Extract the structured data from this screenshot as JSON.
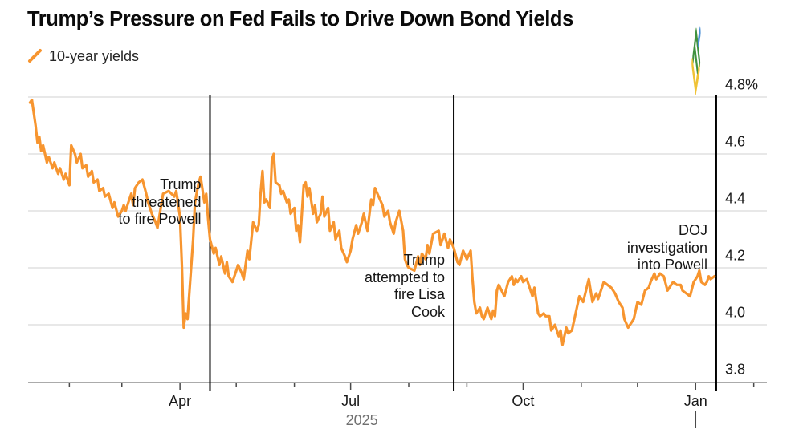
{
  "header": {
    "title": "Trump’s Pressure on Fed Fails to Drive Down Bond Yields",
    "legend": {
      "label": "10-year yields"
    }
  },
  "colors": {
    "line": "#F7952F",
    "grid": "#DADADA",
    "axis": "#ABABAB",
    "tick": "#4A4A4A",
    "event_line": "#000000",
    "text": "#1A1A1A",
    "year_text": "#707070"
  },
  "logo": {
    "green": "#41923F",
    "yellow": "#EFC235",
    "blue": "#4A8FD5"
  },
  "chart_data": {
    "type": "line",
    "title": "Trump’s Pressure on Fed Fails to Drive Down Bond Yields",
    "legend_position": "top-left",
    "grid": true,
    "ylim": [
      3.8,
      4.8
    ],
    "x_domain": [
      "2025-01-10",
      "2026-02-08"
    ],
    "y_axis": {
      "side": "right",
      "ticks": [
        {
          "value": 4.8,
          "label": "4.8%"
        },
        {
          "value": 4.6,
          "label": "4.6"
        },
        {
          "value": 4.4,
          "label": "4.4"
        },
        {
          "value": 4.2,
          "label": "4.2"
        },
        {
          "value": 4.0,
          "label": "4.0"
        },
        {
          "value": 3.8,
          "label": "3.8"
        }
      ]
    },
    "x_axis": {
      "ticks": [
        {
          "date": "2025-04-01",
          "label": "Apr"
        },
        {
          "date": "2025-07-01",
          "label": "Jul"
        },
        {
          "date": "2025-10-01",
          "label": "Oct"
        },
        {
          "date": "2026-01-01",
          "label": "Jan"
        }
      ],
      "minor_ticks": [
        "2025-02-01",
        "2025-03-01",
        "2025-05-01",
        "2025-06-01",
        "2025-08-01",
        "2025-09-01",
        "2025-11-01",
        "2025-12-01",
        "2026-02-01"
      ],
      "year_label": "2025",
      "year_divider_date": "2026-01-01"
    },
    "events": [
      {
        "date": "2025-04-17",
        "label_lines": [
          "Trump",
          "threatened",
          "to fire Powell"
        ]
      },
      {
        "date": "2025-08-25",
        "label_lines": [
          "Trump",
          "attempted to",
          "fire Lisa",
          "Cook"
        ]
      },
      {
        "date": "2026-01-12",
        "label_lines": [
          "DOJ",
          "investigation",
          "into Powell"
        ]
      }
    ],
    "series": [
      {
        "name": "10-year yields",
        "color": "#F7952F",
        "points": [
          [
            "2025-01-11",
            4.78
          ],
          [
            "2025-01-12",
            4.79
          ],
          [
            "2025-01-14",
            4.7
          ],
          [
            "2025-01-15",
            4.64
          ],
          [
            "2025-01-16",
            4.66
          ],
          [
            "2025-01-17",
            4.61
          ],
          [
            "2025-01-18",
            4.63
          ],
          [
            "2025-01-20",
            4.57
          ],
          [
            "2025-01-21",
            4.59
          ],
          [
            "2025-01-23",
            4.55
          ],
          [
            "2025-01-24",
            4.57
          ],
          [
            "2025-01-26",
            4.53
          ],
          [
            "2025-01-27",
            4.55
          ],
          [
            "2025-01-29",
            4.51
          ],
          [
            "2025-01-30",
            4.53
          ],
          [
            "2025-02-01",
            4.49
          ],
          [
            "2025-02-02",
            4.63
          ],
          [
            "2025-02-04",
            4.6
          ],
          [
            "2025-02-05",
            4.57
          ],
          [
            "2025-02-07",
            4.6
          ],
          [
            "2025-02-08",
            4.55
          ],
          [
            "2025-02-10",
            4.56
          ],
          [
            "2025-02-11",
            4.52
          ],
          [
            "2025-02-12",
            4.53
          ],
          [
            "2025-02-13",
            4.54
          ],
          [
            "2025-02-14",
            4.5
          ],
          [
            "2025-02-16",
            4.51
          ],
          [
            "2025-02-17",
            4.47
          ],
          [
            "2025-02-19",
            4.48
          ],
          [
            "2025-02-20",
            4.45
          ],
          [
            "2025-02-22",
            4.46
          ],
          [
            "2025-02-24",
            4.41
          ],
          [
            "2025-02-25",
            4.43
          ],
          [
            "2025-02-27",
            4.38
          ],
          [
            "2025-03-01",
            4.4
          ],
          [
            "2025-03-02",
            4.42
          ],
          [
            "2025-03-03",
            4.4
          ],
          [
            "2025-03-06",
            4.46
          ],
          [
            "2025-03-07",
            4.42
          ],
          [
            "2025-03-08",
            4.48
          ],
          [
            "2025-03-10",
            4.5
          ],
          [
            "2025-03-12",
            4.51
          ],
          [
            "2025-03-14",
            4.46
          ],
          [
            "2025-03-15",
            4.43
          ],
          [
            "2025-03-17",
            4.39
          ],
          [
            "2025-03-19",
            4.36
          ],
          [
            "2025-03-20",
            4.34
          ],
          [
            "2025-03-23",
            4.46
          ],
          [
            "2025-03-26",
            4.47
          ],
          [
            "2025-03-29",
            4.45
          ],
          [
            "2025-03-30",
            4.47
          ],
          [
            "2025-04-01",
            4.38
          ],
          [
            "2025-04-02",
            4.21
          ],
          [
            "2025-04-03",
            3.99
          ],
          [
            "2025-04-04",
            4.04
          ],
          [
            "2025-04-05",
            4.02
          ],
          [
            "2025-04-08",
            4.3
          ],
          [
            "2025-04-09",
            4.43
          ],
          [
            "2025-04-11",
            4.5
          ],
          [
            "2025-04-12",
            4.52
          ],
          [
            "2025-04-14",
            4.43
          ],
          [
            "2025-04-15",
            4.46
          ],
          [
            "2025-04-16",
            4.37
          ],
          [
            "2025-04-17",
            4.3
          ],
          [
            "2025-04-19",
            4.25
          ],
          [
            "2025-04-20",
            4.27
          ],
          [
            "2025-04-22",
            4.21
          ],
          [
            "2025-04-23",
            4.24
          ],
          [
            "2025-04-25",
            4.18
          ],
          [
            "2025-04-26",
            4.22
          ],
          [
            "2025-04-27",
            4.17
          ],
          [
            "2025-04-29",
            4.15
          ],
          [
            "2025-05-01",
            4.19
          ],
          [
            "2025-05-02",
            4.21
          ],
          [
            "2025-05-04",
            4.18
          ],
          [
            "2025-05-05",
            4.16
          ],
          [
            "2025-05-07",
            4.26
          ],
          [
            "2025-05-08",
            4.23
          ],
          [
            "2025-05-10",
            4.36
          ],
          [
            "2025-05-12",
            4.33
          ],
          [
            "2025-05-13",
            4.35
          ],
          [
            "2025-05-14",
            4.46
          ],
          [
            "2025-05-15",
            4.54
          ],
          [
            "2025-05-16",
            4.43
          ],
          [
            "2025-05-17",
            4.44
          ],
          [
            "2025-05-19",
            4.41
          ],
          [
            "2025-05-20",
            4.58
          ],
          [
            "2025-05-21",
            4.6
          ],
          [
            "2025-05-22",
            4.5
          ],
          [
            "2025-05-24",
            4.49
          ],
          [
            "2025-05-25",
            4.46
          ],
          [
            "2025-05-26",
            4.47
          ],
          [
            "2025-05-28",
            4.43
          ],
          [
            "2025-05-29",
            4.44
          ],
          [
            "2025-05-30",
            4.39
          ],
          [
            "2025-06-01",
            4.41
          ],
          [
            "2025-06-02",
            4.33
          ],
          [
            "2025-06-03",
            4.35
          ],
          [
            "2025-06-04",
            4.29
          ],
          [
            "2025-06-06",
            4.49
          ],
          [
            "2025-06-07",
            4.5
          ],
          [
            "2025-06-08",
            4.45
          ],
          [
            "2025-06-09",
            4.48
          ],
          [
            "2025-06-11",
            4.39
          ],
          [
            "2025-06-12",
            4.42
          ],
          [
            "2025-06-13",
            4.36
          ],
          [
            "2025-06-15",
            4.39
          ],
          [
            "2025-06-16",
            4.45
          ],
          [
            "2025-06-17",
            4.38
          ],
          [
            "2025-06-19",
            4.41
          ],
          [
            "2025-06-20",
            4.33
          ],
          [
            "2025-06-22",
            4.36
          ],
          [
            "2025-06-23",
            4.3
          ],
          [
            "2025-06-25",
            4.33
          ],
          [
            "2025-06-26",
            4.27
          ],
          [
            "2025-06-28",
            4.24
          ],
          [
            "2025-06-29",
            4.22
          ],
          [
            "2025-07-01",
            4.26
          ],
          [
            "2025-07-02",
            4.3
          ],
          [
            "2025-07-04",
            4.35
          ],
          [
            "2025-07-05",
            4.32
          ],
          [
            "2025-07-07",
            4.36
          ],
          [
            "2025-07-08",
            4.39
          ],
          [
            "2025-07-10",
            4.33
          ],
          [
            "2025-07-12",
            4.44
          ],
          [
            "2025-07-13",
            4.42
          ],
          [
            "2025-07-14",
            4.48
          ],
          [
            "2025-07-16",
            4.45
          ],
          [
            "2025-07-18",
            4.42
          ],
          [
            "2025-07-19",
            4.38
          ],
          [
            "2025-07-21",
            4.4
          ],
          [
            "2025-07-22",
            4.36
          ],
          [
            "2025-07-24",
            4.32
          ],
          [
            "2025-07-25",
            4.36
          ],
          [
            "2025-07-27",
            4.4
          ],
          [
            "2025-07-29",
            4.33
          ],
          [
            "2025-07-30",
            4.23
          ],
          [
            "2025-07-31",
            4.21
          ],
          [
            "2025-08-01",
            4.2
          ],
          [
            "2025-08-04",
            4.19
          ],
          [
            "2025-08-06",
            4.24
          ],
          [
            "2025-08-07",
            4.21
          ],
          [
            "2025-08-08",
            4.25
          ],
          [
            "2025-08-10",
            4.23
          ],
          [
            "2025-08-11",
            4.28
          ],
          [
            "2025-08-12",
            4.25
          ],
          [
            "2025-08-14",
            4.32
          ],
          [
            "2025-08-17",
            4.33
          ],
          [
            "2025-08-18",
            4.28
          ],
          [
            "2025-08-20",
            4.32
          ],
          [
            "2025-08-22",
            4.27
          ],
          [
            "2025-08-23",
            4.3
          ],
          [
            "2025-08-25",
            4.27
          ],
          [
            "2025-08-27",
            4.22
          ],
          [
            "2025-08-28",
            4.21
          ],
          [
            "2025-08-30",
            4.26
          ],
          [
            "2025-09-01",
            4.23
          ],
          [
            "2025-09-03",
            4.26
          ],
          [
            "2025-09-04",
            4.16
          ],
          [
            "2025-09-05",
            4.08
          ],
          [
            "2025-09-06",
            4.04
          ],
          [
            "2025-09-08",
            4.06
          ],
          [
            "2025-09-09",
            4.03
          ],
          [
            "2025-09-10",
            4.02
          ],
          [
            "2025-09-12",
            4.06
          ],
          [
            "2025-09-14",
            4.02
          ],
          [
            "2025-09-15",
            4.05
          ],
          [
            "2025-09-16",
            4.03
          ],
          [
            "2025-09-17",
            4.12
          ],
          [
            "2025-09-18",
            4.14
          ],
          [
            "2025-09-21",
            4.1
          ],
          [
            "2025-09-23",
            4.15
          ],
          [
            "2025-09-25",
            4.17
          ],
          [
            "2025-09-26",
            4.14
          ],
          [
            "2025-09-27",
            4.16
          ],
          [
            "2025-09-28",
            4.15
          ],
          [
            "2025-09-30",
            4.17
          ],
          [
            "2025-10-01",
            4.15
          ],
          [
            "2025-10-03",
            4.16
          ],
          [
            "2025-10-06",
            4.1
          ],
          [
            "2025-10-07",
            4.13
          ],
          [
            "2025-10-09",
            4.04
          ],
          [
            "2025-10-10",
            4.03
          ],
          [
            "2025-10-12",
            4.04
          ],
          [
            "2025-10-13",
            4.03
          ],
          [
            "2025-10-15",
            4.03
          ],
          [
            "2025-10-16",
            3.98
          ],
          [
            "2025-10-18",
            4.0
          ],
          [
            "2025-10-20",
            3.96
          ],
          [
            "2025-10-21",
            3.98
          ],
          [
            "2025-10-22",
            3.93
          ],
          [
            "2025-10-24",
            3.99
          ],
          [
            "2025-10-25",
            3.97
          ],
          [
            "2025-10-27",
            3.98
          ],
          [
            "2025-10-29",
            4.04
          ],
          [
            "2025-10-31",
            4.1
          ],
          [
            "2025-11-02",
            4.08
          ],
          [
            "2025-11-05",
            4.16
          ],
          [
            "2025-11-07",
            4.08
          ],
          [
            "2025-11-09",
            4.11
          ],
          [
            "2025-11-10",
            4.09
          ],
          [
            "2025-11-13",
            4.15
          ],
          [
            "2025-11-15",
            4.14
          ],
          [
            "2025-11-17",
            4.13
          ],
          [
            "2025-11-19",
            4.11
          ],
          [
            "2025-11-21",
            4.08
          ],
          [
            "2025-11-23",
            4.06
          ],
          [
            "2025-11-24",
            4.02
          ],
          [
            "2025-11-26",
            3.99
          ],
          [
            "2025-11-28",
            4.01
          ],
          [
            "2025-11-29",
            4.02
          ],
          [
            "2025-12-01",
            4.08
          ],
          [
            "2025-12-03",
            4.07
          ],
          [
            "2025-12-05",
            4.12
          ],
          [
            "2025-12-07",
            4.13
          ],
          [
            "2025-12-08",
            4.15
          ],
          [
            "2025-12-10",
            4.18
          ],
          [
            "2025-12-11",
            4.16
          ],
          [
            "2025-12-13",
            4.18
          ],
          [
            "2025-12-15",
            4.17
          ],
          [
            "2025-12-17",
            4.12
          ],
          [
            "2025-12-20",
            4.15
          ],
          [
            "2025-12-22",
            4.14
          ],
          [
            "2025-12-24",
            4.14
          ],
          [
            "2025-12-25",
            4.12
          ],
          [
            "2025-12-27",
            4.11
          ],
          [
            "2025-12-29",
            4.1
          ],
          [
            "2025-12-31",
            4.15
          ],
          [
            "2026-01-02",
            4.17
          ],
          [
            "2026-01-03",
            4.19
          ],
          [
            "2026-01-04",
            4.15
          ],
          [
            "2026-01-06",
            4.14
          ],
          [
            "2026-01-07",
            4.15
          ],
          [
            "2026-01-08",
            4.17
          ],
          [
            "2026-01-09",
            4.16
          ],
          [
            "2026-01-11",
            4.17
          ]
        ]
      }
    ]
  }
}
